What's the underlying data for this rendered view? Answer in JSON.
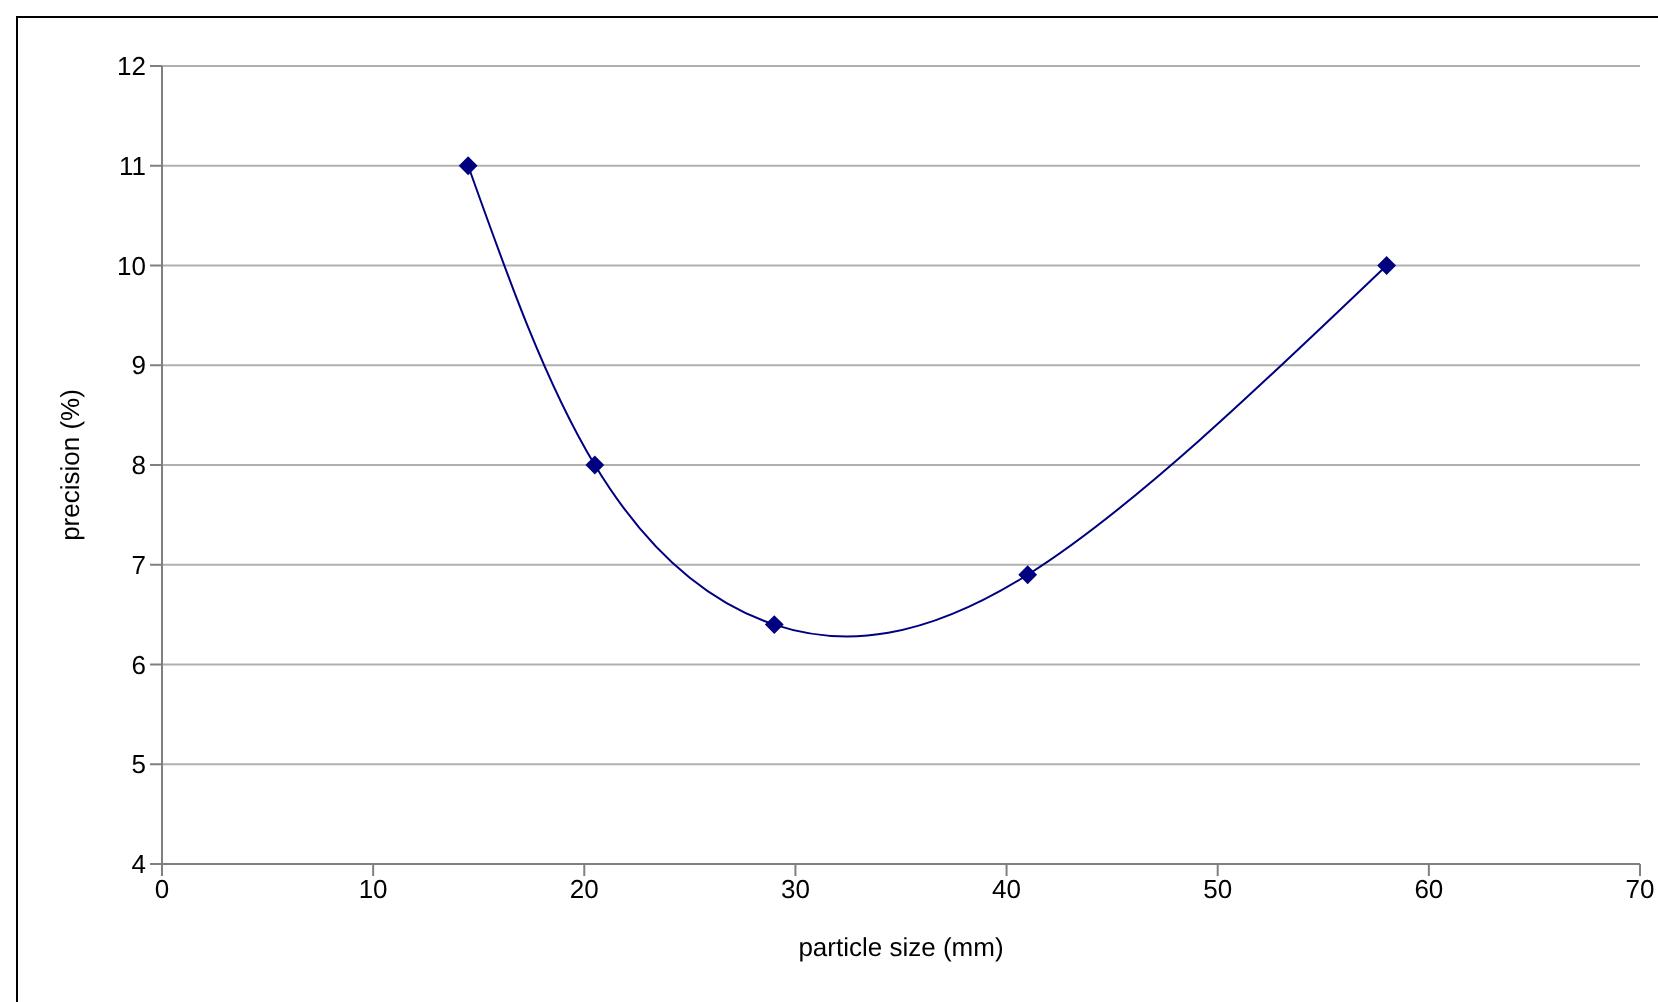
{
  "chart_data": {
    "type": "line",
    "xlabel": "particle size (mm)",
    "ylabel": "precision (%)",
    "x": [
      14.5,
      20.5,
      29,
      41,
      58
    ],
    "series": [
      {
        "color": "#000080",
        "values": [
          11,
          8,
          6.4,
          6.9,
          10
        ]
      }
    ],
    "xlim": [
      0,
      70
    ],
    "xticks": [
      0,
      10,
      20,
      30,
      40,
      50,
      60,
      70
    ],
    "ylim": [
      4,
      12
    ],
    "yticks": [
      4,
      5,
      6,
      7,
      8,
      9,
      10,
      11,
      12
    ],
    "grid": "y",
    "legend": false,
    "marker": "diamond",
    "line_style": "solid"
  }
}
